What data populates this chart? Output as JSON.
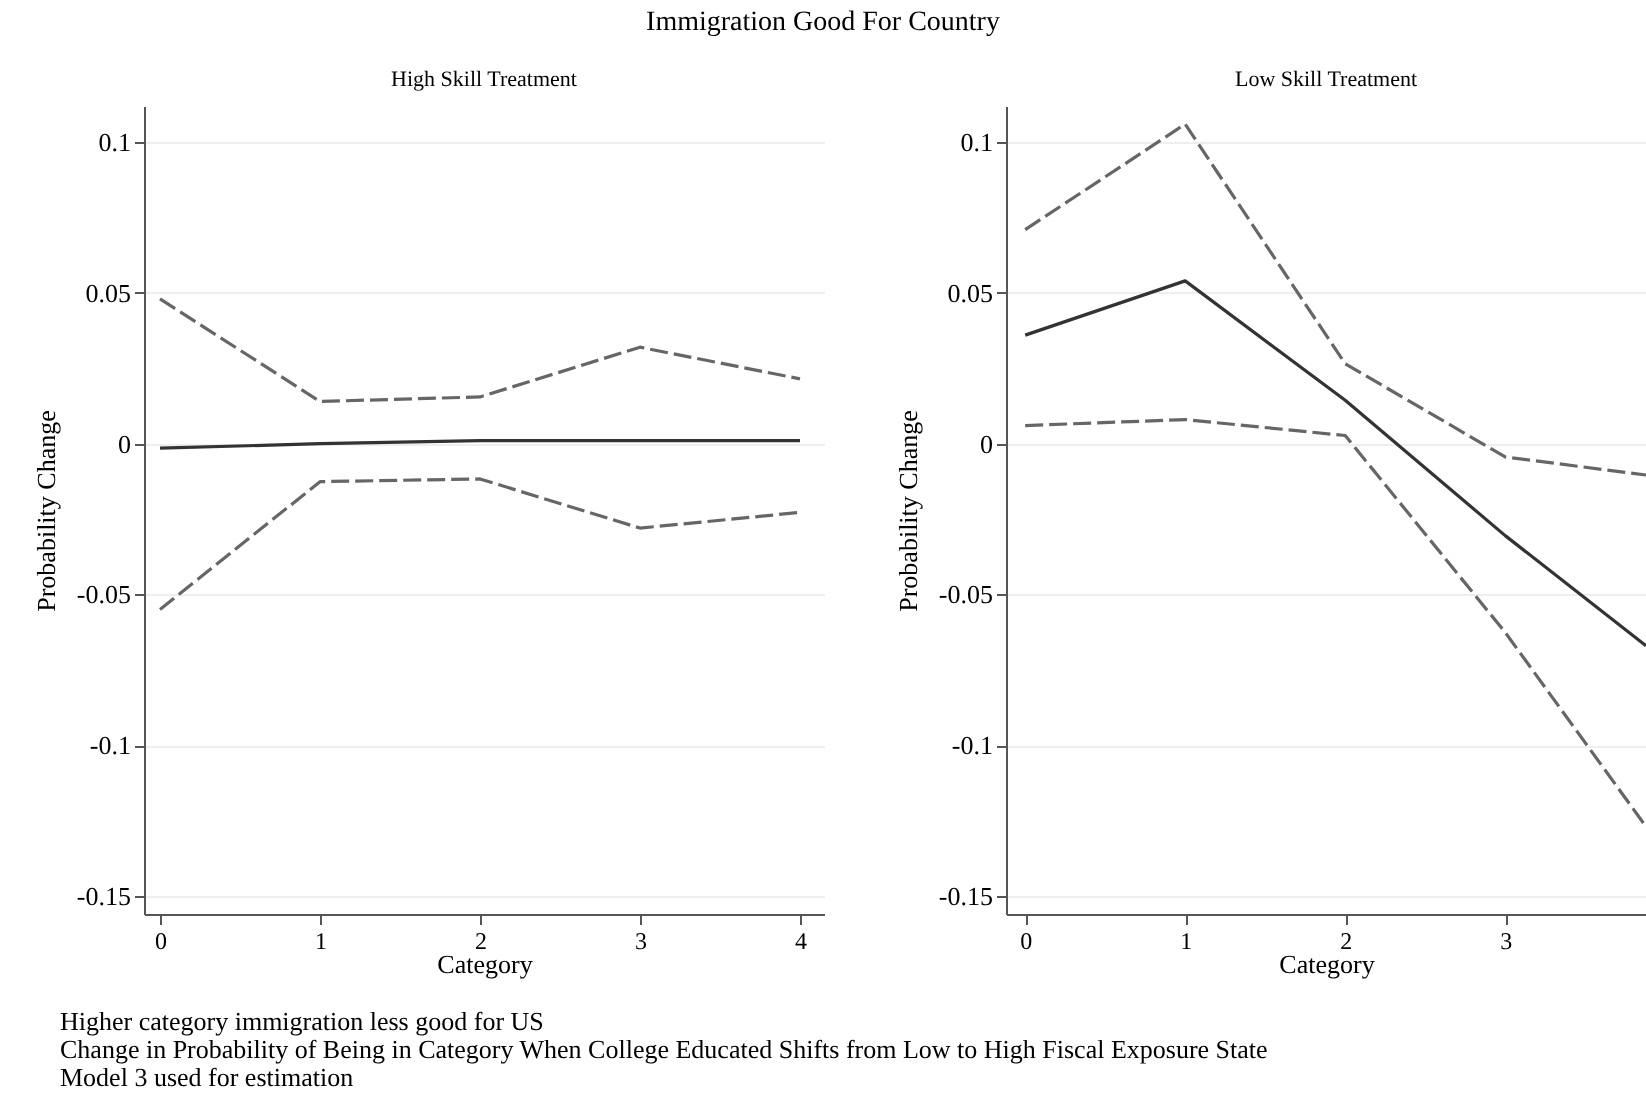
{
  "chart_data": [
    {
      "type": "line",
      "title": "Immigration Good For Country",
      "subtitle": "High Skill Treatment",
      "xlabel": "Category",
      "ylabel": "Probability Change",
      "xlim": [
        -0.1,
        4.15
      ],
      "xticks": [
        0,
        1,
        2,
        3,
        4
      ],
      "ylim": [
        -0.156,
        0.112
      ],
      "yticks": [
        -0.15,
        -0.1,
        -0.05,
        0,
        0.05,
        0.1
      ],
      "grid": "y",
      "x": [
        0,
        1,
        2,
        3,
        4
      ],
      "series": [
        {
          "color": "#333333",
          "line_style": "solid",
          "values": [
            -0.0015,
            0,
            0.001,
            0.001,
            0.001
          ]
        },
        {
          "color": "#666666",
          "line_style": "dashed",
          "values": [
            0.048,
            0.014,
            0.0155,
            0.032,
            0.0215
          ]
        },
        {
          "color": "#666666",
          "line_style": "dashed",
          "values": [
            -0.055,
            -0.0126,
            -0.0117,
            -0.028,
            -0.0228
          ]
        }
      ],
      "annotations": [
        "Higher category immigration less good for US",
        "Change in Probability of Being in Category When College Educated Shifts from Low to High Fiscal Exposure State",
        "Model 3 used for estimation"
      ]
    },
    {
      "type": "line",
      "subtitle": "Low Skill Treatment",
      "xlabel": "Category",
      "ylabel": "Probability Change",
      "xlim": [
        -0.12,
        3.88
      ],
      "xticks": [
        0,
        1,
        2,
        3
      ],
      "ylim": [
        -0.156,
        0.112
      ],
      "yticks": [
        -0.15,
        -0.1,
        -0.05,
        0,
        0.05,
        0.1
      ],
      "grid": "y",
      "x": [
        0,
        1,
        2,
        3,
        3.88
      ],
      "series": [
        {
          "color": "#333333",
          "line_style": "solid",
          "values": [
            0.036,
            0.054,
            0.0144,
            -0.0305,
            -0.067
          ]
        },
        {
          "color": "#666666",
          "line_style": "dashed",
          "values": [
            0.071,
            0.106,
            0.0265,
            -0.0044,
            -0.0104
          ]
        },
        {
          "color": "#666666",
          "line_style": "dashed",
          "values": [
            0.006,
            0.008,
            0.0027,
            -0.0626,
            -0.127
          ]
        }
      ]
    }
  ]
}
